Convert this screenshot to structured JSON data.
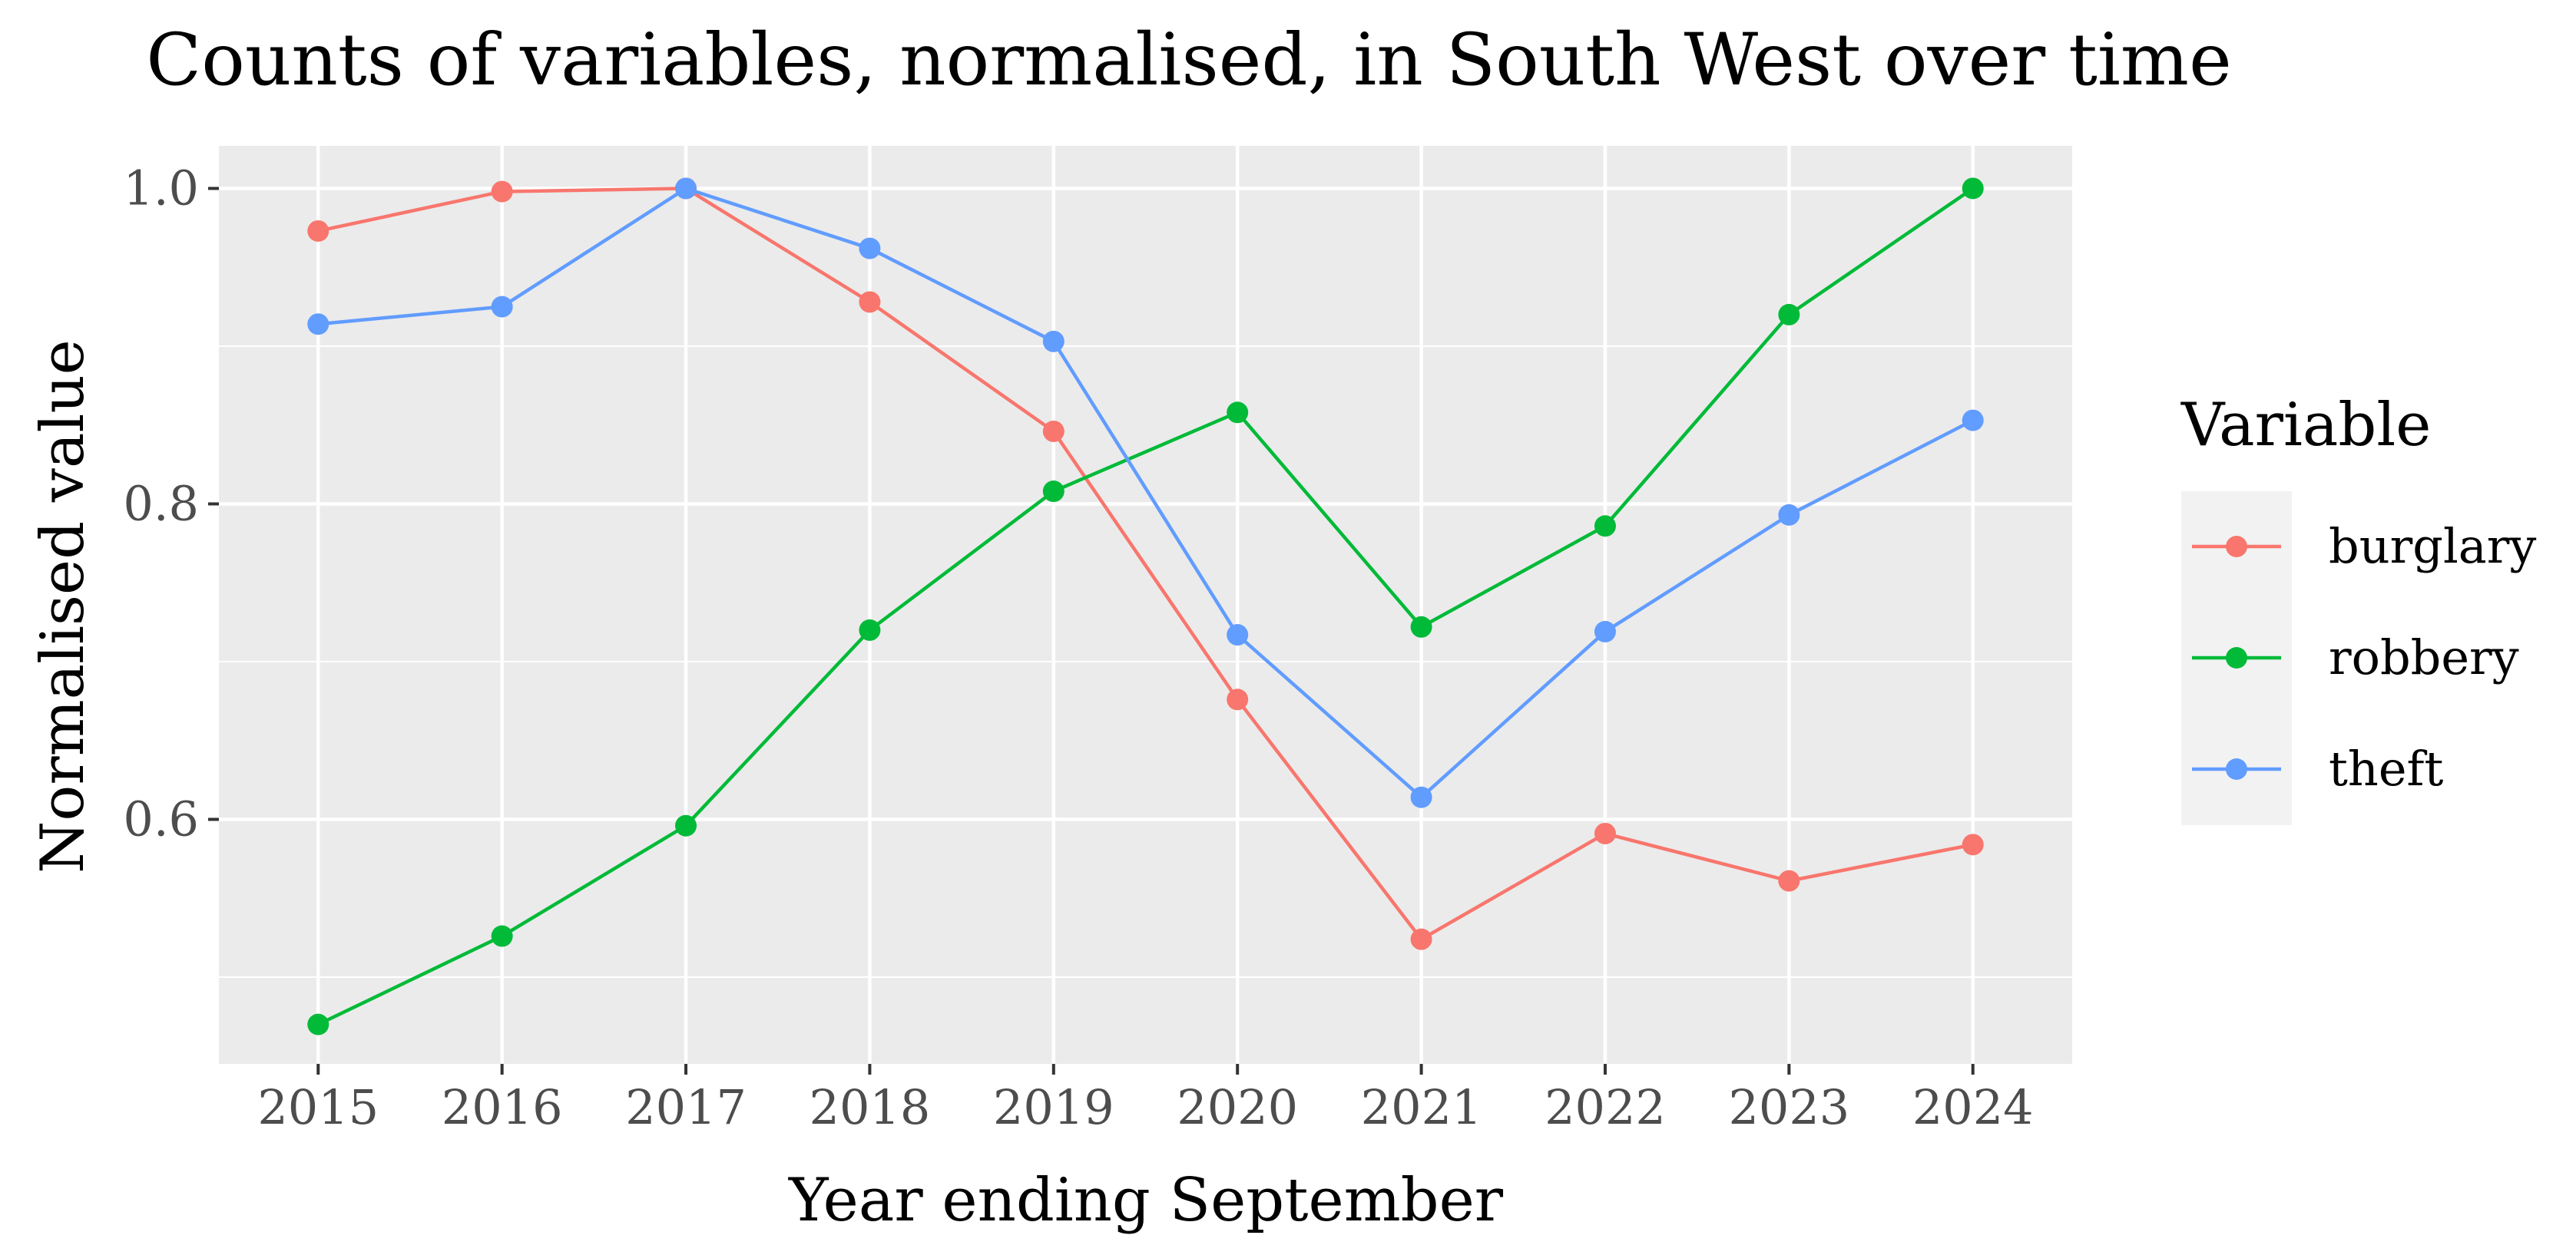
{
  "chart_data": {
    "type": "line",
    "title": "Counts of variables, normalised, in South West over time",
    "xlabel": "Year ending September",
    "ylabel": "Normalised value",
    "x": [
      2015,
      2016,
      2017,
      2018,
      2019,
      2020,
      2021,
      2022,
      2023,
      2024
    ],
    "x_tick_labels": [
      "2015",
      "2016",
      "2017",
      "2018",
      "2019",
      "2020",
      "2021",
      "2022",
      "2023",
      "2024"
    ],
    "y_major_ticks": [
      0.6,
      0.8,
      1.0
    ],
    "y_tick_labels": [
      "0.6",
      "0.8",
      "1.0"
    ],
    "y_minor_ticks": [
      0.5,
      0.7,
      0.9
    ],
    "ylim": [
      0.445,
      1.027
    ],
    "grid": true,
    "legend": {
      "title": "Variable",
      "position": "right"
    },
    "series": [
      {
        "name": "burglary",
        "color": "#F8766D",
        "values": [
          0.973,
          0.998,
          1.0,
          0.928,
          0.846,
          0.676,
          0.524,
          0.591,
          0.561,
          0.584
        ]
      },
      {
        "name": "robbery",
        "color": "#00BA38",
        "values": [
          0.47,
          0.526,
          0.596,
          0.72,
          0.808,
          0.858,
          0.722,
          0.786,
          0.92,
          1.0
        ]
      },
      {
        "name": "theft",
        "color": "#619CFF",
        "values": [
          0.914,
          0.925,
          1.0,
          0.962,
          0.903,
          0.717,
          0.614,
          0.719,
          0.793,
          0.853
        ]
      }
    ]
  }
}
